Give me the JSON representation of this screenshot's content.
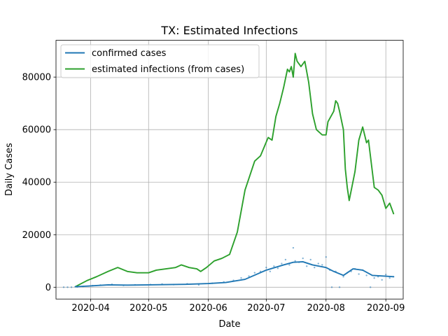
{
  "chart_data": {
    "type": "line",
    "title": "TX: Estimated Infections",
    "xlabel": "Date",
    "ylabel": "Daily Cases",
    "xlim": [
      "2020-03-14",
      "2020-09-10"
    ],
    "ylim": [
      -4500,
      94000
    ],
    "x_ticks": [
      "2020-04-01",
      "2020-05-01",
      "2020-06-01",
      "2020-07-01",
      "2020-08-01",
      "2020-09-01"
    ],
    "x_tick_labels": [
      "2020-04",
      "2020-05",
      "2020-06",
      "2020-07",
      "2020-08",
      "2020-09"
    ],
    "y_ticks": [
      0,
      20000,
      40000,
      60000,
      80000
    ],
    "y_tick_labels": [
      "0",
      "20000",
      "40000",
      "60000",
      "80000"
    ],
    "grid": true,
    "legend_position": "top-left",
    "colors": {
      "confirmed": "#1f77b4",
      "estimated": "#2ca02c",
      "grid": "#b0b0b0"
    },
    "series": [
      {
        "name": "confirmed cases",
        "color": "#1f77b4",
        "x": [
          "2020-03-24",
          "2020-04-01",
          "2020-04-10",
          "2020-04-20",
          "2020-05-01",
          "2020-05-10",
          "2020-05-20",
          "2020-06-01",
          "2020-06-10",
          "2020-06-20",
          "2020-07-01",
          "2020-07-10",
          "2020-07-15",
          "2020-07-20",
          "2020-07-25",
          "2020-08-01",
          "2020-08-05",
          "2020-08-10",
          "2020-08-15",
          "2020-08-20",
          "2020-08-25",
          "2020-09-01",
          "2020-09-05"
        ],
        "y": [
          200,
          500,
          900,
          800,
          900,
          1000,
          1100,
          1400,
          1800,
          3000,
          6500,
          8500,
          9500,
          9700,
          8500,
          7500,
          6000,
          4500,
          7000,
          6500,
          4500,
          4200,
          4000
        ]
      },
      {
        "name": "estimated infections (from cases)",
        "color": "#2ca02c",
        "x": [
          "2020-03-24",
          "2020-03-30",
          "2020-04-04",
          "2020-04-10",
          "2020-04-15",
          "2020-04-20",
          "2020-04-25",
          "2020-05-01",
          "2020-05-05",
          "2020-05-10",
          "2020-05-15",
          "2020-05-18",
          "2020-05-22",
          "2020-05-26",
          "2020-05-28",
          "2020-05-31",
          "2020-06-04",
          "2020-06-08",
          "2020-06-12",
          "2020-06-16",
          "2020-06-20",
          "2020-06-25",
          "2020-06-28",
          "2020-07-02",
          "2020-07-04",
          "2020-07-06",
          "2020-07-08",
          "2020-07-10",
          "2020-07-12",
          "2020-07-13",
          "2020-07-14",
          "2020-07-15",
          "2020-07-16",
          "2020-07-17",
          "2020-07-19",
          "2020-07-21",
          "2020-07-23",
          "2020-07-25",
          "2020-07-27",
          "2020-07-30",
          "2020-08-01",
          "2020-08-02",
          "2020-08-05",
          "2020-08-06",
          "2020-08-07",
          "2020-08-08",
          "2020-08-10",
          "2020-08-11",
          "2020-08-12",
          "2020-08-13",
          "2020-08-16",
          "2020-08-18",
          "2020-08-20",
          "2020-08-22",
          "2020-08-23",
          "2020-08-26",
          "2020-08-28",
          "2020-08-30",
          "2020-09-01",
          "2020-09-03",
          "2020-09-05"
        ],
        "y": [
          200,
          2500,
          4000,
          6000,
          7500,
          6000,
          5500,
          5500,
          6500,
          7000,
          7500,
          8500,
          7500,
          7000,
          6000,
          7500,
          10000,
          11000,
          12500,
          21000,
          37000,
          48000,
          50000,
          57000,
          56000,
          65000,
          70000,
          76000,
          83000,
          82000,
          84000,
          80000,
          89000,
          86000,
          84000,
          86000,
          78000,
          66000,
          60000,
          58000,
          58000,
          63000,
          67000,
          71000,
          70000,
          67000,
          60000,
          45000,
          38000,
          33000,
          44000,
          56000,
          61000,
          55000,
          56000,
          38000,
          37000,
          35000,
          30000,
          32000,
          28000
        ]
      }
    ],
    "scatter": {
      "color": "#1f77b4",
      "x": [
        "2020-03-18",
        "2020-03-20",
        "2020-03-22",
        "2020-03-25",
        "2020-03-28",
        "2020-04-02",
        "2020-04-06",
        "2020-04-12",
        "2020-04-18",
        "2020-04-24",
        "2020-05-02",
        "2020-05-08",
        "2020-05-14",
        "2020-05-21",
        "2020-05-27",
        "2020-06-03",
        "2020-06-09",
        "2020-06-14",
        "2020-06-18",
        "2020-06-22",
        "2020-06-25",
        "2020-06-28",
        "2020-07-01",
        "2020-07-03",
        "2020-07-05",
        "2020-07-07",
        "2020-07-09",
        "2020-07-11",
        "2020-07-13",
        "2020-07-15",
        "2020-07-16",
        "2020-07-18",
        "2020-07-20",
        "2020-07-22",
        "2020-07-24",
        "2020-07-26",
        "2020-07-28",
        "2020-07-30",
        "2020-08-01",
        "2020-08-03",
        "2020-08-04",
        "2020-08-06",
        "2020-08-08",
        "2020-08-10",
        "2020-08-12",
        "2020-08-14",
        "2020-08-16",
        "2020-08-18",
        "2020-08-20",
        "2020-08-22",
        "2020-08-24",
        "2020-08-26",
        "2020-08-28",
        "2020-08-30",
        "2020-09-01",
        "2020-09-03",
        "2020-09-05"
      ],
      "y": [
        0,
        0,
        0,
        100,
        300,
        600,
        800,
        1100,
        700,
        900,
        1000,
        1200,
        1000,
        1300,
        900,
        1500,
        2000,
        2600,
        3500,
        4200,
        5500,
        6000,
        7500,
        6000,
        8000,
        7200,
        9000,
        10500,
        8500,
        15000,
        10000,
        9500,
        11000,
        8000,
        10500,
        7500,
        9000,
        8500,
        11500,
        6500,
        0,
        6000,
        0,
        4000,
        5500,
        6000,
        7000,
        5000,
        6500,
        4500,
        0,
        3500,
        4000,
        2800,
        4800,
        3500,
        4000
      ]
    }
  },
  "legend": {
    "entries": [
      {
        "label": "confirmed cases",
        "color": "#1f77b4"
      },
      {
        "label": "estimated infections (from cases)",
        "color": "#2ca02c"
      }
    ]
  }
}
